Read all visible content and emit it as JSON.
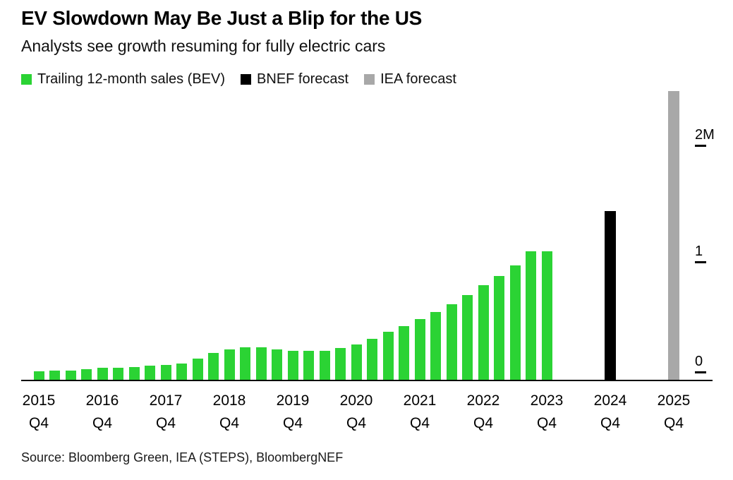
{
  "header": {
    "title": "EV Slowdown May Be Just a Blip for the US",
    "subtitle": "Analysts see growth resuming for fully electric cars"
  },
  "legend": [
    {
      "label": "Trailing 12-month sales (BEV)",
      "color": "#2bd334"
    },
    {
      "label": "BNEF forecast",
      "color": "#000000"
    },
    {
      "label": "IEA forecast",
      "color": "#a8a8a8"
    }
  ],
  "chart_data": {
    "type": "bar",
    "title": "EV Slowdown May Be Just a Blip for the US",
    "subtitle": "Analysts see growth resuming for fully electric cars",
    "unit": "millions of vehicles (trailing 12-month US BEV sales)",
    "ylim": [
      0,
      2.5
    ],
    "grid": false,
    "legend_position": "top",
    "yticks": [
      {
        "value": 0,
        "label": "0"
      },
      {
        "value": 1,
        "label": "1"
      },
      {
        "value": 2,
        "label": "2M"
      }
    ],
    "x_axis_labels": [
      {
        "year": "2015",
        "quarter": "Q4"
      },
      {
        "year": "2016",
        "quarter": "Q4"
      },
      {
        "year": "2017",
        "quarter": "Q4"
      },
      {
        "year": "2018",
        "quarter": "Q4"
      },
      {
        "year": "2019",
        "quarter": "Q4"
      },
      {
        "year": "2020",
        "quarter": "Q4"
      },
      {
        "year": "2021",
        "quarter": "Q4"
      },
      {
        "year": "2022",
        "quarter": "Q4"
      },
      {
        "year": "2023",
        "quarter": "Q4"
      },
      {
        "year": "2024",
        "quarter": "Q4"
      },
      {
        "year": "2025",
        "quarter": "Q4"
      }
    ],
    "series": [
      {
        "name": "Trailing 12-month sales (BEV)",
        "color": "#2bd334",
        "points": [
          {
            "period": "2015 Q4",
            "value": 0.07
          },
          {
            "period": "2016 Q1",
            "value": 0.08
          },
          {
            "period": "2016 Q2",
            "value": 0.08
          },
          {
            "period": "2016 Q3",
            "value": 0.09
          },
          {
            "period": "2016 Q4",
            "value": 0.1
          },
          {
            "period": "2017 Q1",
            "value": 0.1
          },
          {
            "period": "2017 Q2",
            "value": 0.11
          },
          {
            "period": "2017 Q3",
            "value": 0.12
          },
          {
            "period": "2017 Q4",
            "value": 0.13
          },
          {
            "period": "2018 Q1",
            "value": 0.14
          },
          {
            "period": "2018 Q2",
            "value": 0.18
          },
          {
            "period": "2018 Q3",
            "value": 0.23
          },
          {
            "period": "2018 Q4",
            "value": 0.26
          },
          {
            "period": "2019 Q1",
            "value": 0.28
          },
          {
            "period": "2019 Q2",
            "value": 0.28
          },
          {
            "period": "2019 Q3",
            "value": 0.26
          },
          {
            "period": "2019 Q4",
            "value": 0.25
          },
          {
            "period": "2020 Q1",
            "value": 0.25
          },
          {
            "period": "2020 Q2",
            "value": 0.25
          },
          {
            "period": "2020 Q3",
            "value": 0.27
          },
          {
            "period": "2020 Q4",
            "value": 0.3
          },
          {
            "period": "2021 Q1",
            "value": 0.35
          },
          {
            "period": "2021 Q2",
            "value": 0.41
          },
          {
            "period": "2021 Q3",
            "value": 0.46
          },
          {
            "period": "2021 Q4",
            "value": 0.52
          },
          {
            "period": "2022 Q1",
            "value": 0.58
          },
          {
            "period": "2022 Q2",
            "value": 0.65
          },
          {
            "period": "2022 Q3",
            "value": 0.73
          },
          {
            "period": "2022 Q4",
            "value": 0.81
          },
          {
            "period": "2023 Q1",
            "value": 0.89
          },
          {
            "period": "2023 Q2",
            "value": 0.98
          },
          {
            "period": "2023 Q3",
            "value": 1.1
          },
          {
            "period": "2023 Q4",
            "value": 1.1
          }
        ]
      },
      {
        "name": "BNEF forecast",
        "color": "#000000",
        "points": [
          {
            "period": "2024 Q4",
            "value": 1.45
          }
        ]
      },
      {
        "name": "IEA forecast",
        "color": "#a8a8a8",
        "points": [
          {
            "period": "2025 Q4",
            "value": 2.48
          }
        ]
      }
    ]
  },
  "source": "Source: Bloomberg Green, IEA (STEPS), BloombergNEF"
}
